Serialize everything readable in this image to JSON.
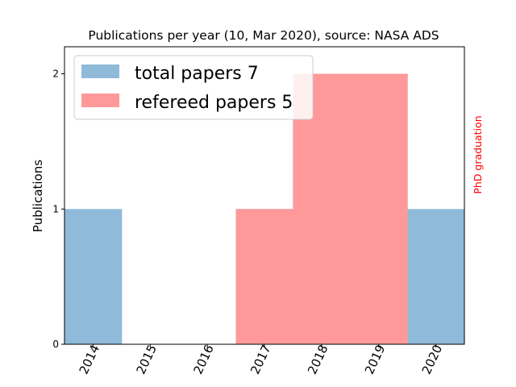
{
  "chart_data": {
    "type": "bar",
    "title": "Publications per year (10, Mar 2020), source: NASA ADS",
    "xlabel": "",
    "ylabel": "Publications",
    "categories": [
      "2014",
      "2015",
      "2016",
      "2017",
      "2018",
      "2019",
      "2020"
    ],
    "ylim": [
      0,
      2.2
    ],
    "yticks": [
      0,
      1,
      2
    ],
    "grid": false,
    "legend_position": "top-left",
    "series": [
      {
        "name": "total papers 7",
        "values": [
          1,
          0,
          0,
          1,
          2,
          2,
          1
        ],
        "color": "#8fbad9"
      },
      {
        "name": "refereed papers 5",
        "values": [
          0,
          0,
          0,
          1,
          2,
          2,
          0
        ],
        "color": "#ff9999"
      }
    ],
    "annotation": {
      "text": "PhD graduation",
      "color": "#ff0000"
    }
  }
}
